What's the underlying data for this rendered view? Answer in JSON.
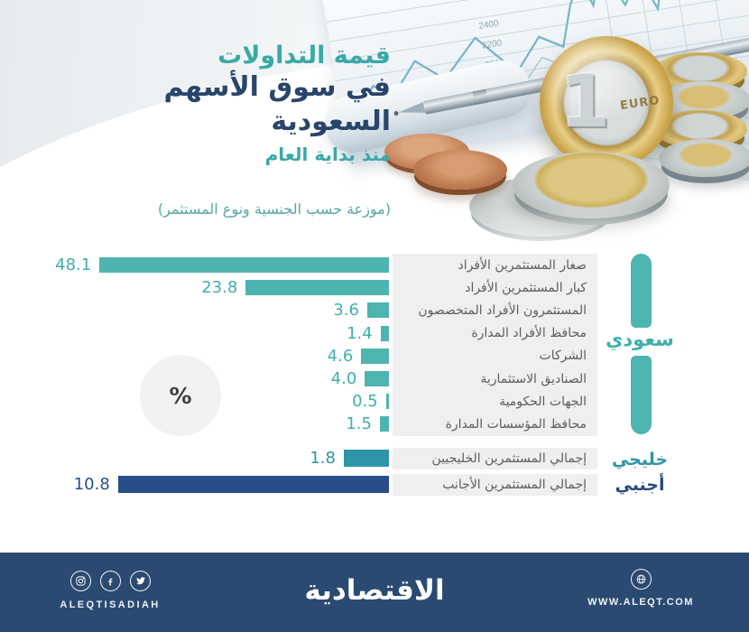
{
  "header": {
    "title_line1": "قيمة التداولات",
    "title_line2": "في سوق الأسهم السعودية",
    "title_line3": "منذ بداية العام",
    "subtitle": "(موزعة حسب الجنسية ونوع المستثمر)"
  },
  "percent_badge": "%",
  "photo": {
    "axis_numbers": [
      "2400",
      "2200",
      "2000"
    ]
  },
  "chart_data": {
    "type": "bar",
    "orientation": "horizontal",
    "direction": "rtl",
    "unit": "%",
    "value_position": "left-of-bar",
    "groups": [
      {
        "name": "سعودي",
        "color": "#4db4b0",
        "value_color": "#3fafab",
        "name_color": "#3fafab",
        "label_bg": "#efefef",
        "rows": [
          {
            "label": "صغار المستثمرين الأفراد",
            "value": 48.1
          },
          {
            "label": "كبار المستثمرين الأفراد",
            "value": 23.8
          },
          {
            "label": "المستثمرون الأفراد المتخصصون",
            "value": 3.6
          },
          {
            "label": "محافظ الأفراد المدارة",
            "value": 1.4
          },
          {
            "label": "الشركات",
            "value": 4.6
          },
          {
            "label": "الصناديق الاستثمارية",
            "value": 4.0
          },
          {
            "label": "الجهات الحكومية",
            "value": 0.5
          },
          {
            "label": "محافظ المؤسسات المدارة",
            "value": 1.5
          }
        ]
      },
      {
        "name": "خليجي",
        "color": "#2d95a8",
        "value_color": "#2d95a8",
        "name_color": "#2d95a8",
        "label_bg": "#efefef",
        "rows": [
          {
            "label": "إجمالي المستثمرين الخليجيين",
            "value": 1.8
          }
        ]
      },
      {
        "name": "أجنبي",
        "color": "#294d89",
        "value_color": "#294d89",
        "name_color": "#27497c",
        "label_bg": "#efefef",
        "rows": [
          {
            "label": "إجمالي المستثمرين الأجانب",
            "value": 10.8
          }
        ]
      }
    ]
  },
  "footer": {
    "handle": "ALEQTISADIAH",
    "brand": "الاقتصادية",
    "website": "WWW.ALEQT.COM"
  },
  "colors": {
    "title_teal": "#3aa9a6",
    "title_navy": "#29456b",
    "subtitle_teal": "#56a6a3",
    "footer_bg": "#2b4a71",
    "label_text": "#5d5d5d",
    "label_bg": "#efefef"
  }
}
